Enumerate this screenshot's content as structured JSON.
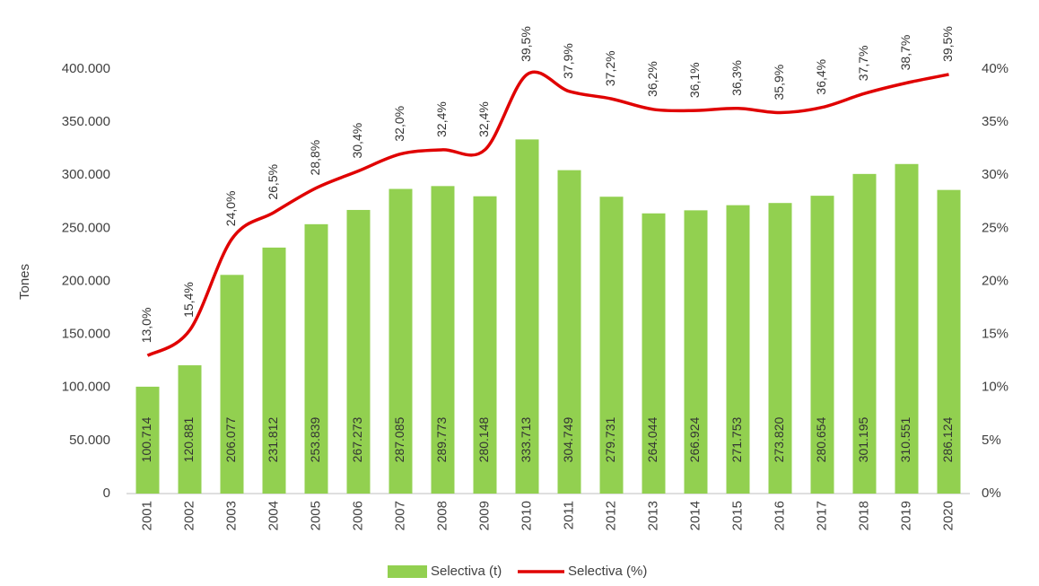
{
  "chart_data": {
    "type": "bar",
    "y_label": "Tones",
    "categories": [
      "2001",
      "2002",
      "2003",
      "2004",
      "2005",
      "2006",
      "2007",
      "2008",
      "2009",
      "2010",
      "2011",
      "2012",
      "2013",
      "2014",
      "2015",
      "2016",
      "2017",
      "2018",
      "2019",
      "2020"
    ],
    "series": [
      {
        "name": "Selectiva (t)",
        "type": "bar",
        "color": "#92d050",
        "values": [
          100714,
          120881,
          206077,
          231812,
          253839,
          267273,
          287085,
          289773,
          280148,
          333713,
          304749,
          279731,
          264044,
          266924,
          271753,
          273820,
          280654,
          301195,
          310551,
          286124
        ],
        "value_labels": [
          "100.714",
          "120.881",
          "206.077",
          "231.812",
          "253.839",
          "267.273",
          "287.085",
          "289.773",
          "280.148",
          "333.713",
          "304.749",
          "279.731",
          "264.044",
          "266.924",
          "271.753",
          "273.820",
          "280.654",
          "301.195",
          "310.551",
          "286.124"
        ]
      },
      {
        "name": "Selectiva (%)",
        "type": "line",
        "axis": "y2",
        "color": "#e00000",
        "values": [
          13.0,
          15.4,
          24.0,
          26.5,
          28.8,
          30.4,
          32.0,
          32.4,
          32.4,
          39.5,
          37.9,
          37.2,
          36.2,
          36.1,
          36.3,
          35.9,
          36.4,
          37.7,
          38.7,
          39.5
        ],
        "value_labels": [
          "13,0%",
          "15,4%",
          "24,0%",
          "26,5%",
          "28,8%",
          "30,4%",
          "32,0%",
          "32,4%",
          "32,4%",
          "39,5%",
          "37,9%",
          "37,2%",
          "36,2%",
          "36,1%",
          "36,3%",
          "35,9%",
          "36,4%",
          "37,7%",
          "38,7%",
          "39,5%"
        ]
      }
    ],
    "ylim": [
      0,
      400000
    ],
    "yticks": [
      0,
      {
        "value": 50000,
        "label": "50.000"
      },
      {
        "value": 100000,
        "label": "100.000"
      },
      {
        "value": 150000,
        "label": "150.000"
      },
      {
        "value": 200000,
        "label": "200.000"
      },
      {
        "value": 250000,
        "label": "250.000"
      },
      {
        "value": 300000,
        "label": "300.000"
      },
      {
        "value": 350000,
        "label": "350.000"
      },
      {
        "value": 400000,
        "label": "400.000"
      }
    ],
    "y2lim": [
      0,
      40
    ],
    "y2ticks": [
      {
        "value": 0,
        "label": "0%"
      },
      {
        "value": 5,
        "label": "5%"
      },
      {
        "value": 10,
        "label": "10%"
      },
      {
        "value": 15,
        "label": "15%"
      },
      {
        "value": 20,
        "label": "20%"
      },
      {
        "value": 25,
        "label": "25%"
      },
      {
        "value": 30,
        "label": "30%"
      },
      {
        "value": 35,
        "label": "35%"
      },
      {
        "value": 40,
        "label": "40%"
      }
    ],
    "grid": false,
    "legend": "bottom"
  }
}
